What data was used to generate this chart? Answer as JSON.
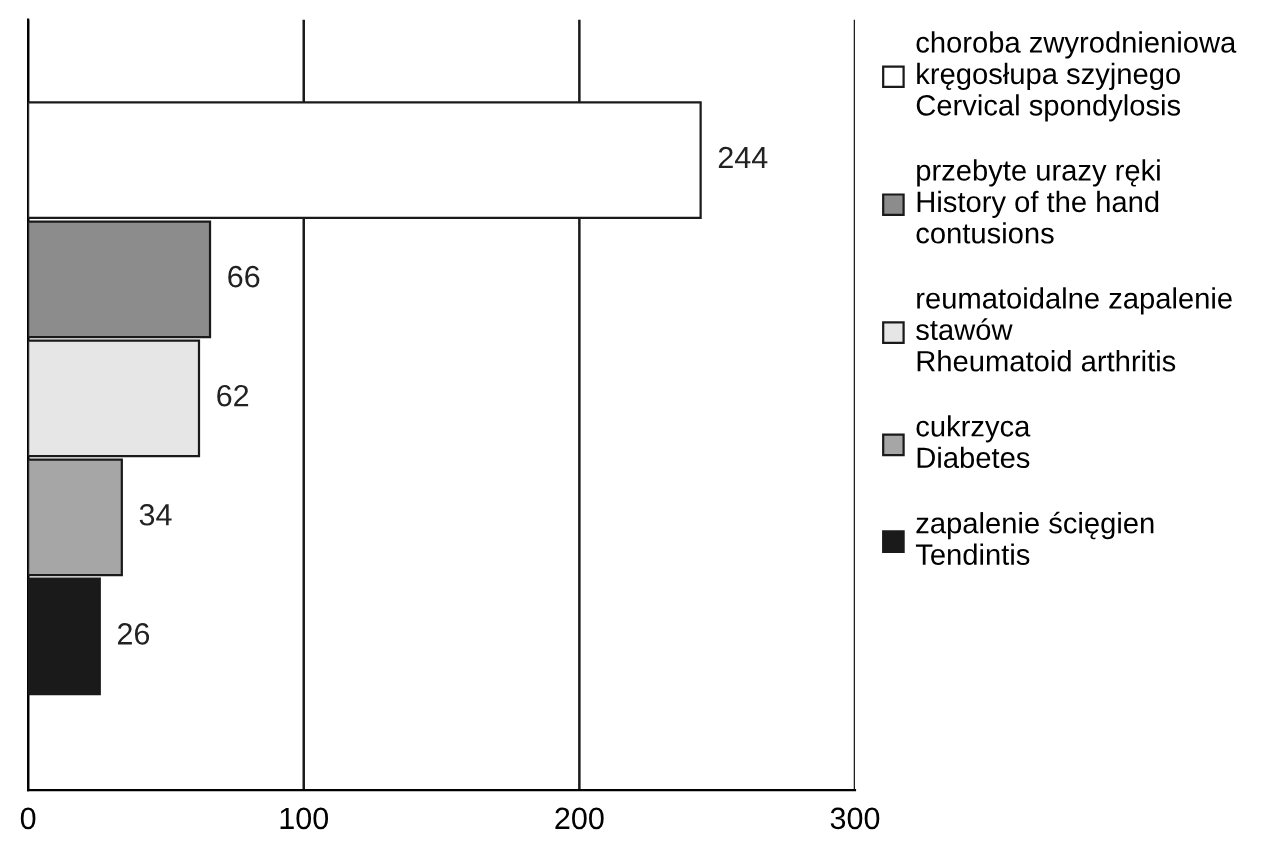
{
  "chart_data": {
    "type": "bar",
    "orientation": "horizontal",
    "categories": [
      null,
      null,
      null,
      null,
      null
    ],
    "series": [
      {
        "name": "choroba zwyrodnieniowa\nkręgosłupa szyjnego\nCervical spondylosis",
        "color": "#ffffff",
        "values": [
          244,
          null,
          null,
          null,
          null
        ]
      },
      {
        "name": "przebyte urazy ręki\nHistory of the hand\ncontusions",
        "color": "#8c8c8c",
        "values": [
          null,
          66,
          null,
          null,
          null
        ]
      },
      {
        "name": "reumatoidalne zapalenie\nstawów\nRheumatoid arthritis",
        "color": "#e6e6e6",
        "values": [
          null,
          null,
          62,
          null,
          null
        ]
      },
      {
        "name": "cukrzyca\nDiabetes",
        "color": "#a6a6a6",
        "values": [
          null,
          null,
          null,
          34,
          null
        ]
      },
      {
        "name": "zapalenie ścięgien\nTendintis",
        "color": "#1a1a1a",
        "values": [
          null,
          null,
          null,
          null,
          26
        ]
      }
    ],
    "xlim": [
      0,
      300
    ],
    "xticks": [
      0,
      100,
      200,
      300
    ],
    "grid": "x",
    "data_labels": true,
    "legend": "right"
  }
}
